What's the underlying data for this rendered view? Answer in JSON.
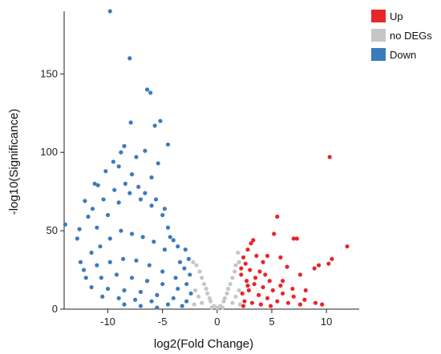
{
  "chart_data": {
    "type": "scatter",
    "title": "",
    "xlabel": "log2(Fold Change)",
    "ylabel": "-log10(Significance)",
    "xlim": [
      -14,
      13
    ],
    "ylim": [
      0,
      190
    ],
    "x_ticks": [
      -10,
      -5,
      0,
      5,
      10
    ],
    "y_ticks": [
      0,
      50,
      100,
      150
    ],
    "x_tick_labels": [
      "-10",
      "-5",
      "0",
      "5",
      "10"
    ],
    "y_tick_labels": [
      "0",
      "50",
      "100",
      "150"
    ],
    "legend_position": "top-right",
    "series": [
      {
        "name": "Up",
        "color": "#e8262a",
        "points": [
          [
            10.3,
            97
          ],
          [
            11.9,
            40
          ],
          [
            10.5,
            32
          ],
          [
            10.2,
            29
          ],
          [
            7.3,
            45
          ],
          [
            7.0,
            45
          ],
          [
            5.5,
            59
          ],
          [
            5.2,
            48
          ],
          [
            3.3,
            44
          ],
          [
            3.1,
            42
          ],
          [
            2.8,
            38
          ],
          [
            5.8,
            33
          ],
          [
            8.9,
            26
          ],
          [
            9.3,
            28
          ],
          [
            7.6,
            22
          ],
          [
            6.4,
            27
          ],
          [
            4.6,
            34
          ],
          [
            6.0,
            18
          ],
          [
            3.6,
            34
          ],
          [
            4.2,
            30
          ],
          [
            2.4,
            33
          ],
          [
            2.6,
            29
          ],
          [
            3.0,
            25
          ],
          [
            2.2,
            22
          ],
          [
            2.7,
            18
          ],
          [
            3.4,
            16
          ],
          [
            4.2,
            14
          ],
          [
            5.1,
            12
          ],
          [
            6.0,
            10
          ],
          [
            7.0,
            8
          ],
          [
            8.0,
            6
          ],
          [
            9.0,
            4
          ],
          [
            9.6,
            3
          ],
          [
            2.3,
            10
          ],
          [
            2.9,
            12
          ],
          [
            3.8,
            9
          ],
          [
            4.6,
            7
          ],
          [
            5.5,
            5
          ],
          [
            6.5,
            4
          ],
          [
            7.6,
            3
          ],
          [
            2.5,
            5
          ],
          [
            3.2,
            4
          ],
          [
            4.0,
            3
          ],
          [
            4.9,
            2
          ],
          [
            2.4,
            2
          ],
          [
            3.5,
            20
          ],
          [
            4.8,
            18
          ],
          [
            5.8,
            15
          ],
          [
            6.9,
            13
          ],
          [
            8.1,
            12
          ],
          [
            2.8,
            15
          ],
          [
            3.9,
            24
          ],
          [
            2.2,
            26
          ],
          [
            4.4,
            22
          ]
        ]
      },
      {
        "name": "no DEGs",
        "color": "#c6c6c6",
        "points": [
          [
            -2.2,
            30
          ],
          [
            -1.6,
            24
          ],
          [
            -1.2,
            16
          ],
          [
            -0.9,
            10
          ],
          [
            -0.6,
            5
          ],
          [
            -0.3,
            2
          ],
          [
            0,
            1
          ],
          [
            0.3,
            2
          ],
          [
            0.6,
            5
          ],
          [
            0.9,
            10
          ],
          [
            1.2,
            16
          ],
          [
            1.6,
            24
          ],
          [
            2.0,
            30
          ],
          [
            1.9,
            36
          ],
          [
            -1.9,
            28
          ],
          [
            -1.4,
            20
          ],
          [
            -1.0,
            13
          ],
          [
            -0.7,
            7
          ],
          [
            0.7,
            7
          ],
          [
            1.0,
            13
          ],
          [
            1.4,
            20
          ],
          [
            1.7,
            28
          ],
          [
            -2.0,
            12
          ],
          [
            -1.7,
            8
          ],
          [
            -1.4,
            4
          ],
          [
            1.4,
            4
          ],
          [
            1.7,
            8
          ],
          [
            2.0,
            12
          ],
          [
            -2.1,
            3
          ],
          [
            2.1,
            3
          ],
          [
            -0.5,
            1
          ],
          [
            0.5,
            1
          ]
        ]
      },
      {
        "name": "Down",
        "color": "#3a7bbd",
        "points": [
          [
            -9.8,
            190
          ],
          [
            -8.0,
            160
          ],
          [
            -6.4,
            140
          ],
          [
            -6.1,
            138
          ],
          [
            -5.7,
            117
          ],
          [
            -5.2,
            120
          ],
          [
            -7.9,
            119
          ],
          [
            -4.5,
            105
          ],
          [
            -8.5,
            104
          ],
          [
            -8.8,
            100
          ],
          [
            -9.5,
            94
          ],
          [
            -6.6,
            101
          ],
          [
            -7.4,
            97
          ],
          [
            -5.4,
            93
          ],
          [
            -10.2,
            88
          ],
          [
            -9.0,
            91
          ],
          [
            -6.0,
            84
          ],
          [
            -11.2,
            80
          ],
          [
            -7.8,
            86
          ],
          [
            -10.9,
            79
          ],
          [
            -13.9,
            54
          ],
          [
            -12.6,
            51
          ],
          [
            -12.8,
            45
          ],
          [
            -11.8,
            59
          ],
          [
            -11.4,
            64
          ],
          [
            -12.1,
            69
          ],
          [
            -4.3,
            46
          ],
          [
            -4.0,
            44
          ],
          [
            -3.6,
            40
          ],
          [
            -2.9,
            38
          ],
          [
            -2.6,
            32
          ],
          [
            -12.5,
            30
          ],
          [
            -11.5,
            36
          ],
          [
            -10.7,
            40
          ],
          [
            -9.8,
            45
          ],
          [
            -8.8,
            50
          ],
          [
            -7.8,
            48
          ],
          [
            -6.8,
            46
          ],
          [
            -5.8,
            43
          ],
          [
            -4.8,
            38
          ],
          [
            -12.2,
            25
          ],
          [
            -11.0,
            28
          ],
          [
            -9.8,
            30
          ],
          [
            -8.6,
            32
          ],
          [
            -7.4,
            31
          ],
          [
            -6.2,
            28
          ],
          [
            -5.0,
            24
          ],
          [
            -3.8,
            20
          ],
          [
            -2.8,
            16
          ],
          [
            -12.0,
            20
          ],
          [
            -10.6,
            20
          ],
          [
            -9.2,
            22
          ],
          [
            -7.8,
            20
          ],
          [
            -6.4,
            18
          ],
          [
            -5.0,
            16
          ],
          [
            -3.6,
            13
          ],
          [
            -2.4,
            10
          ],
          [
            -11.5,
            14
          ],
          [
            -10.0,
            13
          ],
          [
            -8.5,
            12
          ],
          [
            -7.0,
            11
          ],
          [
            -5.5,
            9
          ],
          [
            -4.0,
            7
          ],
          [
            -2.8,
            5
          ],
          [
            -10.5,
            8
          ],
          [
            -9.0,
            7
          ],
          [
            -7.5,
            6
          ],
          [
            -6.0,
            5
          ],
          [
            -4.5,
            3
          ],
          [
            -3.2,
            2
          ],
          [
            -8.5,
            3
          ],
          [
            -7.0,
            2
          ],
          [
            -5.5,
            1
          ],
          [
            -11.0,
            52
          ],
          [
            -10.0,
            60
          ],
          [
            -9.0,
            68
          ],
          [
            -8.0,
            74
          ],
          [
            -7.0,
            70
          ],
          [
            -6.0,
            66
          ],
          [
            -5.0,
            60
          ],
          [
            -4.5,
            52
          ],
          [
            -10.4,
            70
          ],
          [
            -9.4,
            76
          ],
          [
            -8.4,
            80
          ],
          [
            -7.2,
            78
          ],
          [
            -6.6,
            74
          ],
          [
            -5.6,
            70
          ],
          [
            -4.8,
            64
          ],
          [
            -3.4,
            30
          ],
          [
            -3.0,
            26
          ],
          [
            -2.5,
            22
          ]
        ]
      }
    ]
  }
}
